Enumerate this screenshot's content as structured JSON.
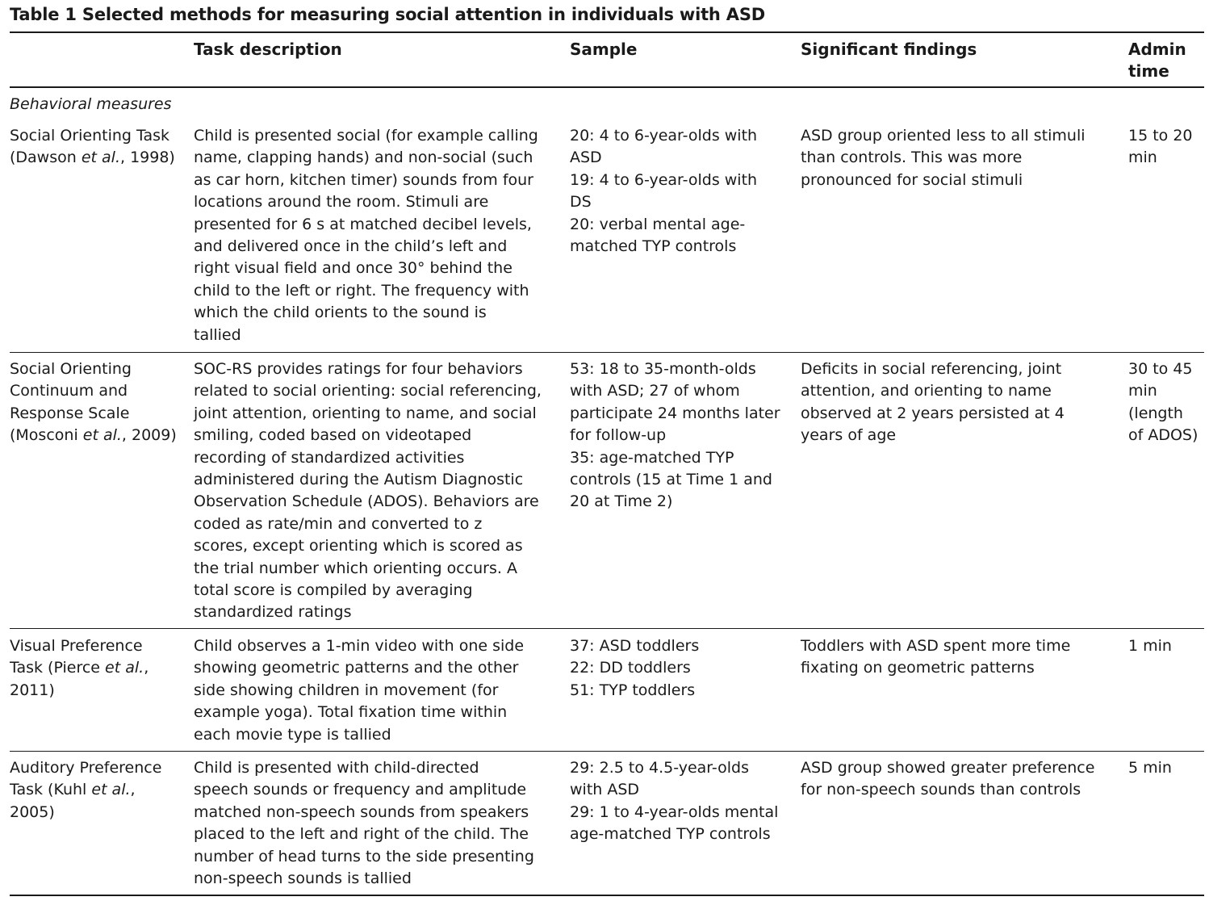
{
  "table": {
    "caption": "Table 1 Selected methods for measuring social attention in individuals with ASD",
    "headers": {
      "task_description": "Task description",
      "sample": "Sample",
      "significant_findings": "Significant findings",
      "admin_time_line1": "Admin",
      "admin_time_line2": "time"
    },
    "section_label": "Behavioral measures",
    "rows": [
      {
        "method": {
          "name": "Social Orienting Task",
          "cite_pre": "(Dawson ",
          "cite_etal": "et al.",
          "cite_post": ", 1998)"
        },
        "task_description": [
          "Child is presented social (for example calling",
          "name, clapping hands) and non-social (such",
          "as car horn, kitchen timer) sounds from four",
          "locations around the room. Stimuli are",
          "presented for 6 s at matched decibel levels,",
          "and delivered once in the child’s left and",
          "right visual field and once 30° behind the",
          "child to the left or right. The frequency with",
          "which the child orients to the sound is",
          "tallied"
        ],
        "sample": [
          "20: 4 to 6-year-olds with",
          "ASD",
          "19: 4 to 6-year-olds with",
          "DS",
          "20: verbal mental age-",
          "matched TYP controls"
        ],
        "significant_findings": [
          "ASD group oriented less to all stimuli",
          "than controls. This was more",
          "pronounced for social stimuli"
        ],
        "admin_time": [
          "15 to 20",
          "min"
        ]
      },
      {
        "method": {
          "name_lines": [
            "Social Orienting",
            "Continuum and",
            "Response Scale"
          ],
          "cite_pre": "(Mosconi ",
          "cite_etal": "et al.",
          "cite_post": ", 2009)"
        },
        "task_description": [
          "SOC-RS provides ratings for four behaviors",
          "related to social orienting: social referencing,",
          "joint attention, orienting to name, and social",
          "smiling, coded based on videotaped",
          "recording of standardized activities",
          "administered during the Autism Diagnostic",
          "Observation Schedule (ADOS). Behaviors are",
          "coded as rate/min and converted to z",
          "scores, except orienting which is scored as",
          "the trial number which orienting occurs. A",
          "total score is compiled by averaging",
          "standardized ratings"
        ],
        "sample": [
          "53: 18 to 35-month-olds",
          "with ASD; 27 of whom",
          "participate 24 months later",
          "for follow-up",
          "35: age-matched TYP",
          "controls (15 at Time 1 and",
          "20 at Time 2)"
        ],
        "significant_findings": [
          "Deficits in social referencing, joint",
          "attention, and orienting to name",
          "observed at 2 years persisted at 4",
          "years of age"
        ],
        "admin_time": [
          "30 to 45",
          "min",
          "(length",
          "of ADOS)"
        ]
      },
      {
        "method": {
          "line1": "Visual Preference",
          "line2_pre": "Task (Pierce ",
          "cite_etal": "et al.",
          "line2_post": ",",
          "line3": "2011)"
        },
        "task_description": [
          "Child observes a 1-min video with one side",
          "showing geometric patterns and the other",
          "side showing children in movement (for",
          "example yoga). Total fixation time within",
          "each movie type is tallied"
        ],
        "sample": [
          "37: ASD toddlers",
          "22: DD toddlers",
          "51: TYP toddlers"
        ],
        "significant_findings": [
          "Toddlers with ASD spent more time",
          "fixating on geometric patterns"
        ],
        "admin_time": [
          "1 min"
        ]
      },
      {
        "method": {
          "line1": "Auditory Preference",
          "line2_pre": "Task (Kuhl ",
          "cite_etal": "et al.",
          "line2_post": ",",
          "line3": "2005)"
        },
        "task_description": [
          "Child is presented with child-directed",
          "speech sounds or frequency and amplitude",
          "matched non-speech sounds from speakers",
          "placed to the left and right of the child. The",
          "number of head turns to the side presenting",
          "non-speech sounds is tallied"
        ],
        "sample": [
          "29: 2.5 to 4.5-year-olds",
          "with ASD",
          "29: 1 to 4-year-olds mental",
          "age-matched TYP controls"
        ],
        "significant_findings": [
          "ASD group showed greater preference",
          "for non-speech sounds than controls"
        ],
        "admin_time": [
          "5 min"
        ]
      }
    ]
  }
}
